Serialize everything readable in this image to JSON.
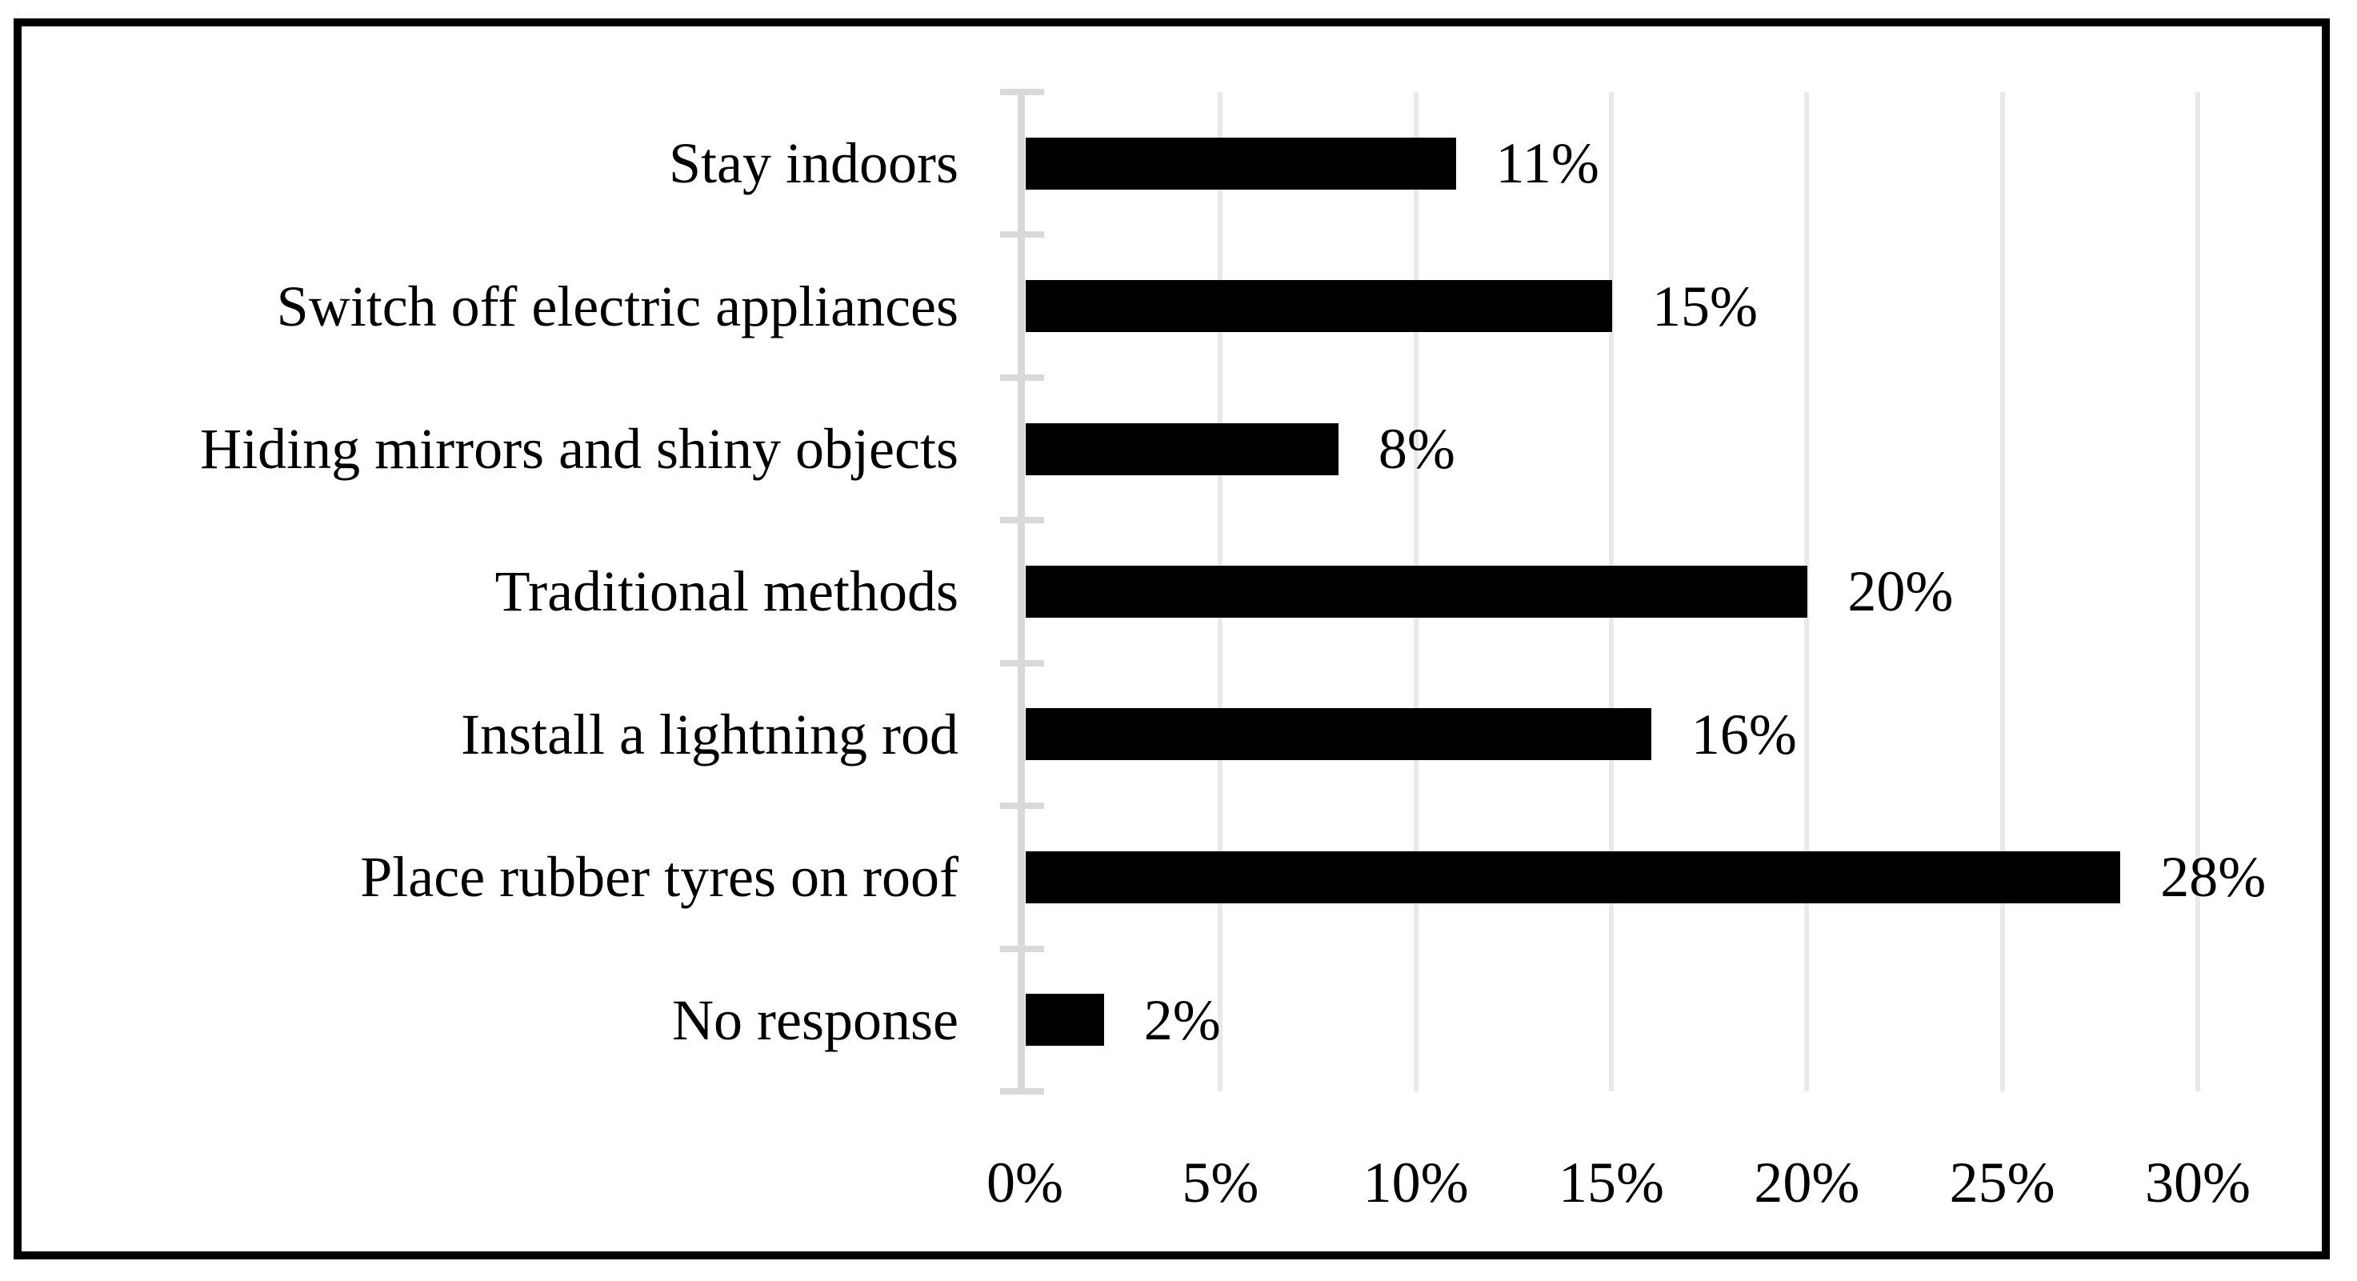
{
  "figure": {
    "background": "#FFFFFF",
    "border_color": "#000000"
  },
  "chart_data": {
    "type": "bar",
    "orientation": "horizontal",
    "title": "",
    "xlabel": "",
    "ylabel": "",
    "categories": [
      "Stay indoors",
      "Switch off electric appliances",
      "Hiding mirrors and shiny objects",
      "Traditional methods",
      "Install a lightning rod",
      "Place rubber tyres on roof",
      "No response"
    ],
    "values": [
      11,
      15,
      8,
      20,
      16,
      28,
      2
    ],
    "value_labels": [
      "11%",
      "15%",
      "8%",
      "20%",
      "16%",
      "28%",
      "2%"
    ],
    "xlim": [
      0,
      30
    ],
    "x_ticks": [
      0,
      5,
      10,
      15,
      20,
      25,
      30
    ],
    "x_tick_labels": [
      "0%",
      "5%",
      "10%",
      "15%",
      "20%",
      "25%",
      "30%"
    ],
    "grid": "vertical-major",
    "legend": "none",
    "bar_color": "#000000",
    "gridline_color": "#E9E9E9",
    "axis_color": "#D9D9D9",
    "text_color": "#000000"
  }
}
